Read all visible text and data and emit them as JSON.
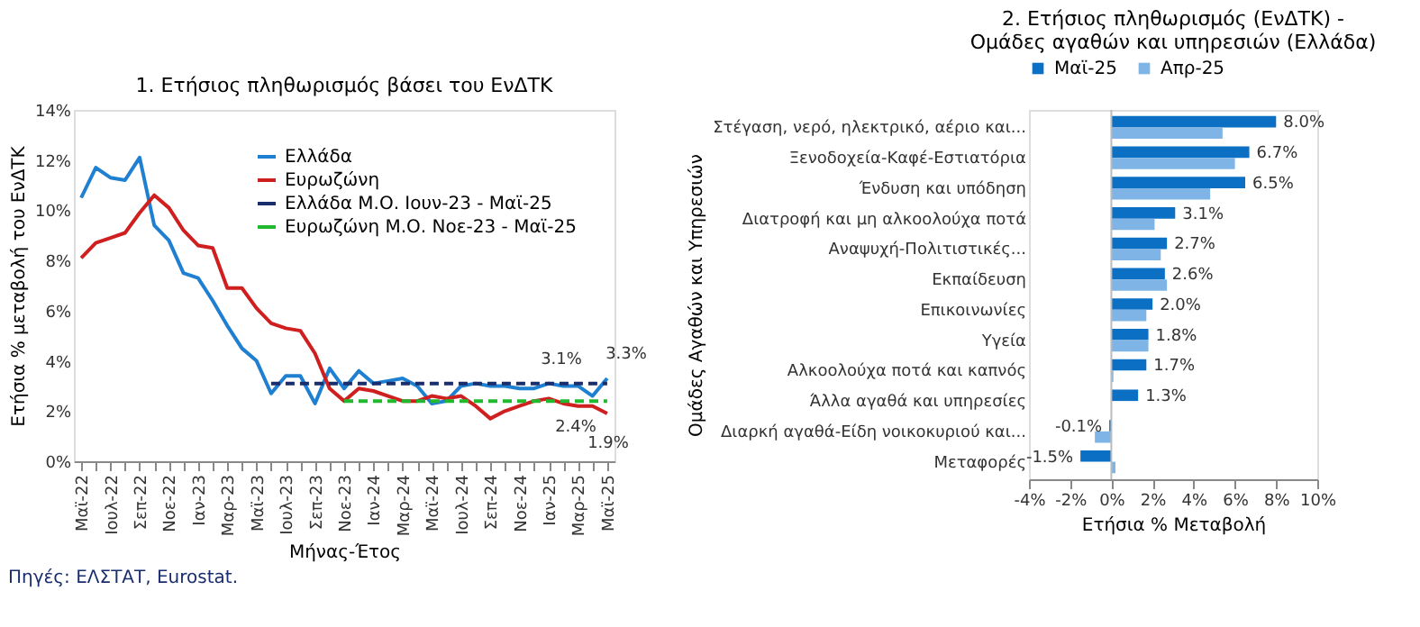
{
  "chart_data": [
    {
      "type": "line",
      "title": "1. Ετήσιος πληθωρισμός βάσει του ΕνΔΤΚ",
      "xlabel": "Μήνας-Έτος",
      "ylabel": "Ετήσια % μεταβολή του ΕνΔΤΚ",
      "categories": [
        "Μαϊ-22",
        null,
        "Ιουλ-22",
        null,
        "Σεπ-22",
        null,
        "Νοε-22",
        null,
        "Ιαν-23",
        null,
        "Μαρ-23",
        null,
        "Μαϊ-23",
        null,
        "Ιουλ-23",
        null,
        "Σεπ-23",
        null,
        "Νοε-23",
        null,
        "Ιαν-24",
        null,
        "Μαρ-24",
        null,
        "Μαϊ-24",
        null,
        "Ιουλ-24",
        null,
        "Σεπ-24",
        null,
        "Νοε-24",
        null,
        "Ιαν-25",
        null,
        "Μαρ-25",
        null,
        "Μαϊ-25"
      ],
      "series": [
        {
          "name": "Ελλάδα",
          "color": "#1f7fd0",
          "values": [
            10.5,
            11.7,
            11.3,
            11.2,
            12.1,
            9.4,
            8.8,
            7.5,
            7.3,
            6.4,
            5.4,
            4.5,
            4.0,
            2.7,
            3.4,
            3.4,
            2.3,
            3.7,
            2.9,
            3.6,
            3.1,
            3.2,
            3.3,
            3.0,
            2.3,
            2.4,
            3.0,
            3.1,
            3.0,
            3.0,
            2.9,
            2.9,
            3.1,
            3.0,
            3.0,
            2.6,
            3.3
          ]
        },
        {
          "name": "Ευρωζώνη",
          "color": "#d01f1f",
          "values": [
            8.1,
            8.7,
            8.9,
            9.1,
            9.9,
            10.6,
            10.1,
            9.2,
            8.6,
            8.5,
            6.9,
            6.9,
            6.1,
            5.5,
            5.3,
            5.2,
            4.3,
            2.9,
            2.4,
            2.9,
            2.8,
            2.6,
            2.4,
            2.4,
            2.6,
            2.5,
            2.6,
            2.2,
            1.7,
            2.0,
            2.2,
            2.4,
            2.5,
            2.3,
            2.2,
            2.2,
            1.9
          ]
        },
        {
          "name": "Ελλάδα Μ.Ο. Ιουν-23 - Μαϊ-25",
          "color": "#1a2e6e",
          "line_style": "dashed",
          "values": [
            null,
            null,
            null,
            null,
            null,
            null,
            null,
            null,
            null,
            null,
            null,
            null,
            null,
            3.1,
            3.1,
            3.1,
            3.1,
            3.1,
            3.1,
            3.1,
            3.1,
            3.1,
            3.1,
            3.1,
            3.1,
            3.1,
            3.1,
            3.1,
            3.1,
            3.1,
            3.1,
            3.1,
            3.1,
            3.1,
            3.1,
            3.1,
            3.1
          ]
        },
        {
          "name": "Ευρωζώνη Μ.Ο. Νοε-23 - Μαϊ-25",
          "color": "#22b830",
          "line_style": "dashed",
          "values": [
            null,
            null,
            null,
            null,
            null,
            null,
            null,
            null,
            null,
            null,
            null,
            null,
            null,
            null,
            null,
            null,
            null,
            null,
            2.4,
            2.4,
            2.4,
            2.4,
            2.4,
            2.4,
            2.4,
            2.4,
            2.4,
            2.4,
            2.4,
            2.4,
            2.4,
            2.4,
            2.4,
            2.4,
            2.4,
            2.4,
            2.4
          ]
        }
      ],
      "ylim": [
        0,
        14
      ],
      "yticks": [
        {
          "value": 0,
          "label": "0%"
        },
        {
          "value": 2,
          "label": "2%"
        },
        {
          "value": 4,
          "label": "4%"
        },
        {
          "value": 6,
          "label": "6%"
        },
        {
          "value": 8,
          "label": "8%"
        },
        {
          "value": 10,
          "label": "10%"
        },
        {
          "value": 12,
          "label": "12%"
        },
        {
          "value": 14,
          "label": "14%"
        }
      ],
      "legend": "top right",
      "annotations": [
        {
          "text": "3.1%",
          "x": "Μαϊ-25",
          "y": 3.1
        },
        {
          "text": "3.3%",
          "x": "Μαϊ-25",
          "y": 3.3
        },
        {
          "text": "2.4%",
          "x": "Μαϊ-25",
          "y": 2.4
        },
        {
          "text": "1.9%",
          "x": "Μαϊ-25",
          "y": 1.9
        },
        "Πηγές: ΕΛΣΤΑΤ, Eurostat."
      ]
    },
    {
      "type": "bar",
      "orientation": "horizontal",
      "title": "2. Ετήσιος πληθωρισμός (ΕνΔΤΚ) - Ομάδες αγαθών και υπηρεσιών (Ελλάδα)",
      "xlabel": "Ετήσια % Μεταβολή",
      "ylabel": "Ομάδες Αγαθών και Υπηρεσιών",
      "categories": [
        "Στέγαση, νερό, ηλεκτρικό, αέριο και...",
        "Ξενοδοχεία-Καφέ-Εστιατόρια",
        "Ένδυση και υπόδηση",
        "Διατροφή και μη αλκοολούχα ποτά",
        "Αναψυχή-Πολιτιστικές...",
        "Εκπαίδευση",
        "Επικοινωνίες",
        "Υγεία",
        "Αλκοολούχα ποτά και καπνός",
        "Άλλα αγαθά και υπηρεσίες",
        "Διαρκή αγαθά-Είδη νοικοκυριού και...",
        "Μεταφορές"
      ],
      "series": [
        {
          "name": "Μαϊ-25",
          "color": "#0b6fc4",
          "values": [
            8.0,
            6.7,
            6.5,
            3.1,
            2.7,
            2.6,
            2.0,
            1.8,
            1.7,
            1.3,
            -0.1,
            -1.5
          ],
          "value_labels": [
            "8.0%",
            "6.7%",
            "6.5%",
            "3.1%",
            "2.7%",
            "2.6%",
            "2.0%",
            "1.8%",
            "1.7%",
            "1.3%",
            "-0.1%",
            "-1.5%"
          ]
        },
        {
          "name": "Απρ-25",
          "color": "#7fb4e6",
          "values": [
            5.4,
            6.0,
            4.8,
            2.1,
            2.4,
            2.7,
            1.7,
            1.8,
            0.1,
            0.0,
            -0.8,
            0.2
          ]
        }
      ],
      "xlim": [
        -4,
        10
      ],
      "xticks": [
        {
          "value": -4,
          "label": "-4%"
        },
        {
          "value": -2,
          "label": "-2%"
        },
        {
          "value": 0,
          "label": "0%"
        },
        {
          "value": 2,
          "label": "2%"
        },
        {
          "value": 4,
          "label": "4%"
        },
        {
          "value": 6,
          "label": "6%"
        },
        {
          "value": 8,
          "label": "8%"
        },
        {
          "value": 10,
          "label": "10%"
        }
      ],
      "legend": "top"
    }
  ]
}
